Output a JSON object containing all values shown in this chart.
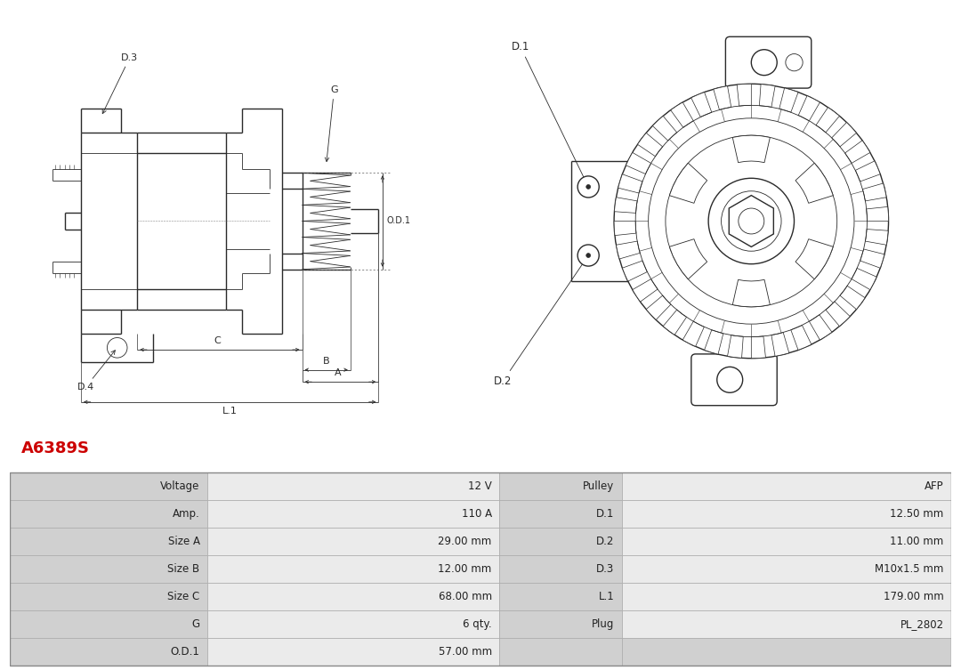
{
  "title": "A6389S",
  "title_color": "#cc0000",
  "bg_color": "#ffffff",
  "table_rows": [
    [
      "Voltage",
      "12 V",
      "Pulley",
      "AFP"
    ],
    [
      "Amp.",
      "110 A",
      "D.1",
      "12.50 mm"
    ],
    [
      "Size A",
      "29.00 mm",
      "D.2",
      "11.00 mm"
    ],
    [
      "Size B",
      "12.00 mm",
      "D.3",
      "M10x1.5 mm"
    ],
    [
      "Size C",
      "68.00 mm",
      "L.1",
      "179.00 mm"
    ],
    [
      "G",
      "6 qty.",
      "Plug",
      "PL_2802"
    ],
    [
      "O.D.1",
      "57.00 mm",
      "",
      ""
    ]
  ],
  "line_color": "#2a2a2a",
  "dim_color": "#2a2a2a",
  "table_header_bg": "#d0d0d0",
  "table_data_bg": "#ebebeb",
  "table_fontsize": 8.5,
  "title_fontsize": 13
}
